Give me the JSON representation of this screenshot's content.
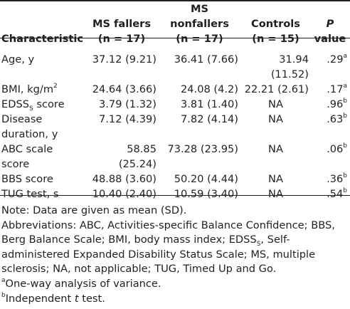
{
  "headers": {
    "characteristic": "Characteristic",
    "fallers_line1": "MS fallers",
    "fallers_line2": "(n = 17)",
    "nonfallers_line1": "MS nonfallers",
    "nonfallers_line2": "(n = 17)",
    "controls_line1": "Controls",
    "controls_line2": "(n = 15)",
    "p_line1": "P",
    "p_line2": "value"
  },
  "rows": [
    {
      "label": "Age, y",
      "fallers": "37.12 (9.21)",
      "nonfallers": "36.41 (7.66)",
      "controls": "31.94 (11.52)",
      "p": ".29",
      "sup": "a"
    },
    {
      "label_main": "BMI, kg/m",
      "label_sup": "2",
      "fallers": "24.64 (3.66)",
      "nonfallers": "24.08 (4.2)",
      "controls": "22.21 (2.61)",
      "p": ".17",
      "sup": "a"
    },
    {
      "label_main": "EDSS",
      "label_sub": "S",
      "label_rest": " score",
      "fallers": "3.79 (1.32)",
      "nonfallers": "3.81 (1.40)",
      "controls": "NA",
      "p": ".96",
      "sup": "b"
    },
    {
      "label_line1": "Disease",
      "label_line2": "duration, y",
      "fallers": "7.12 (4.39)",
      "nonfallers": "7.82 (4.14)",
      "controls": "NA",
      "p": ".63",
      "sup": "b"
    },
    {
      "label_line1": "ABC scale",
      "label_line2": "score",
      "fallers": "58.85 (25.24)",
      "nonfallers": "73.28 (23.95)",
      "controls": "NA",
      "p": ".06",
      "sup": "b"
    },
    {
      "label": "BBS score",
      "fallers": "48.88 (3.60)",
      "nonfallers": "50.20 (4.44)",
      "controls": "NA",
      "p": ".36",
      "sup": "b"
    },
    {
      "label": "TUG test, s",
      "fallers": "10.40 (2.40)",
      "nonfallers": "10.59 (3.40)",
      "controls": "NA",
      "p": ".54",
      "sup": "b"
    }
  ],
  "notes": {
    "data_note": "Note: Data are given as mean (SD).",
    "abbrev_1": "Abbreviations: ABC, Activities-specific Balance Confidence; BBS, Berg Balance Scale; BMI, body mass index; EDSS",
    "abbrev_sub": "S",
    "abbrev_2": ", Self-administered Expanded Disability Status Scale; MS, multiple sclerosis; NA, not applicable; TUG, Timed Up and Go.",
    "footnote_a_mark": "a",
    "footnote_a": "One-way analysis of variance.",
    "footnote_b_mark": "b",
    "footnote_b_1": "Independent ",
    "footnote_b_t": "t",
    "footnote_b_2": " test."
  }
}
